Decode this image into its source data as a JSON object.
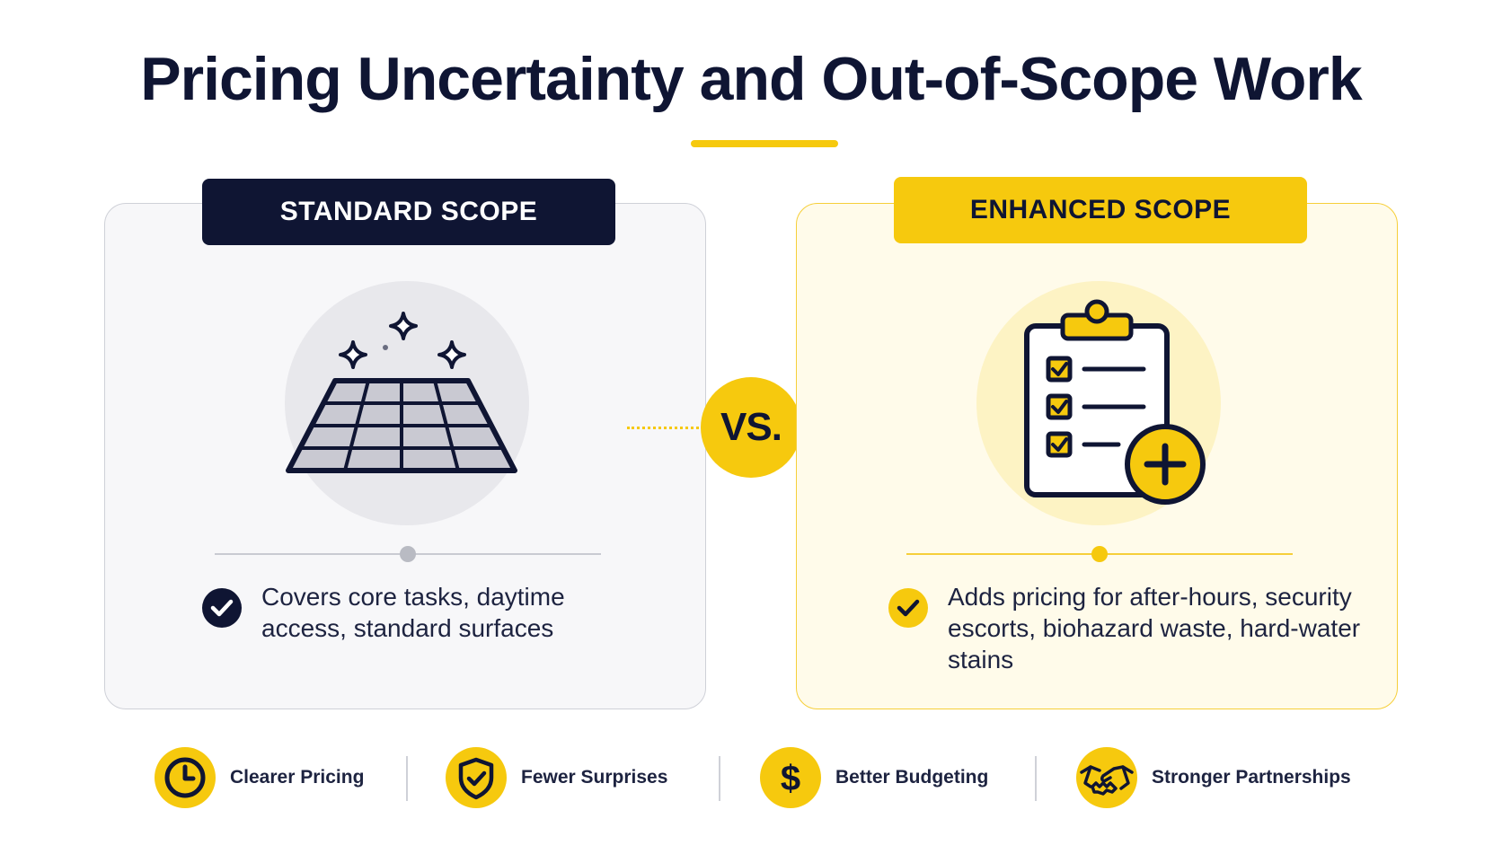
{
  "title": "Pricing Uncertainty and Out-of-Scope Work",
  "vs_label": "VS.",
  "standard": {
    "header": "STANDARD SCOPE",
    "description": "Covers core tasks, daytime access, standard surfaces",
    "icon": "tiled-floor-sparkle-icon"
  },
  "enhanced": {
    "header": "ENHANCED SCOPE",
    "description": "Adds pricing for after-hours, security escorts, biohazard waste, hard-water stains",
    "icon": "clipboard-checklist-plus-icon"
  },
  "benefits": [
    {
      "label": "Clearer Pricing",
      "icon": "clock-icon"
    },
    {
      "label": "Fewer Surprises",
      "icon": "shield-check-icon"
    },
    {
      "label": "Better Budgeting",
      "icon": "dollar-icon"
    },
    {
      "label": "Stronger Partnerships",
      "icon": "handshake-icon"
    }
  ],
  "colors": {
    "navy": "#0f1533",
    "yellow": "#f6c90e",
    "standard_bg": "#f7f7f9",
    "enhanced_bg": "#fffbea"
  }
}
